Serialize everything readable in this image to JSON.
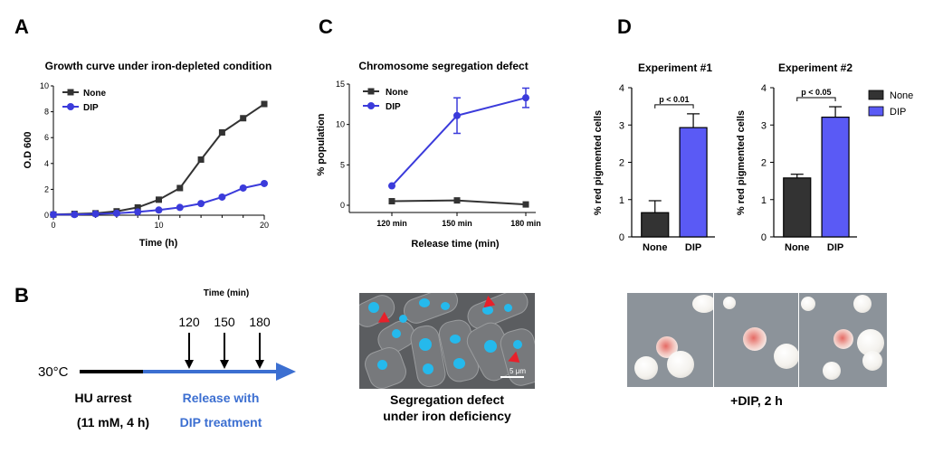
{
  "panels": {
    "A": {
      "letter": "A",
      "chart_data": {
        "type": "line",
        "title": "Growth curve under iron-depleted condition",
        "xlabel": "Time (h)",
        "ylabel": "O.D 600",
        "xlim": [
          0,
          20
        ],
        "ylim": [
          0,
          10
        ],
        "xticks": [
          0,
          10,
          20
        ],
        "yticks": [
          0,
          2,
          4,
          6,
          8,
          10
        ],
        "x": [
          0,
          2,
          4,
          6,
          8,
          10,
          12,
          14,
          16,
          18,
          20
        ],
        "series": [
          {
            "name": "None",
            "color": "#333333",
            "marker": "square",
            "values": [
              0.05,
              0.1,
              0.15,
              0.3,
              0.6,
              1.2,
              2.1,
              4.3,
              6.4,
              7.5,
              8.6
            ]
          },
          {
            "name": "DIP",
            "color": "#3b3bdb",
            "marker": "circle",
            "values": [
              0.05,
              0.05,
              0.1,
              0.15,
              0.25,
              0.4,
              0.6,
              0.9,
              1.4,
              2.1,
              2.45
            ]
          }
        ]
      }
    },
    "B": {
      "letter": "B",
      "time_label": "Time (min)",
      "timepoints": [
        "120",
        "150",
        "180"
      ],
      "temperature": "30°C",
      "arrest_label": "HU arrest",
      "arrest_detail": "(11 mM, 4 h)",
      "release_label": "Release with",
      "release_detail": "DIP treatment",
      "release_color": "#3c6fd1",
      "image_scale": "5 μm",
      "image_caption_line1": "Segregation defect",
      "image_caption_line2": "under iron deficiency"
    },
    "C": {
      "letter": "C",
      "chart_data": {
        "type": "line",
        "title": "Chromosome segregation defect",
        "xlabel": "Release time (min)",
        "ylabel": "% population",
        "categories": [
          "120 min",
          "150 min",
          "180 min"
        ],
        "ylim": [
          0,
          15
        ],
        "yticks": [
          0,
          5,
          10,
          15
        ],
        "series": [
          {
            "name": "None",
            "color": "#333333",
            "marker": "square",
            "values": [
              0.5,
              0.6,
              0.1
            ],
            "errors": [
              0,
              0,
              0
            ]
          },
          {
            "name": "DIP",
            "color": "#3b3bdb",
            "marker": "circle",
            "values": [
              2.4,
              11.1,
              13.3
            ],
            "errors": [
              0,
              2.2,
              1.2
            ]
          }
        ]
      }
    },
    "D": {
      "letter": "D",
      "chart_data": [
        {
          "type": "bar",
          "title": "Experiment #1",
          "ylabel": "% red pigmented cells",
          "categories": [
            "None",
            "DIP"
          ],
          "values": [
            0.65,
            2.93
          ],
          "errors": [
            0.32,
            0.37
          ],
          "colors": [
            "#333333",
            "#5a5af5"
          ],
          "ylim": [
            0,
            4
          ],
          "yticks": [
            0,
            1,
            2,
            3,
            4
          ],
          "significance": "p < 0.01"
        },
        {
          "type": "bar",
          "title": "Experiment #2",
          "ylabel": "% red pigmented cells",
          "categories": [
            "None",
            "DIP"
          ],
          "values": [
            1.58,
            3.21
          ],
          "errors": [
            0.1,
            0.28
          ],
          "colors": [
            "#333333",
            "#5a5af5"
          ],
          "ylim": [
            0,
            4
          ],
          "yticks": [
            0,
            1,
            2,
            3,
            4
          ],
          "significance": "p < 0.05"
        }
      ],
      "legend": [
        {
          "name": "None",
          "color": "#333333"
        },
        {
          "name": "DIP",
          "color": "#5a5af5"
        }
      ],
      "image_caption": "+DIP, 2 h"
    }
  }
}
